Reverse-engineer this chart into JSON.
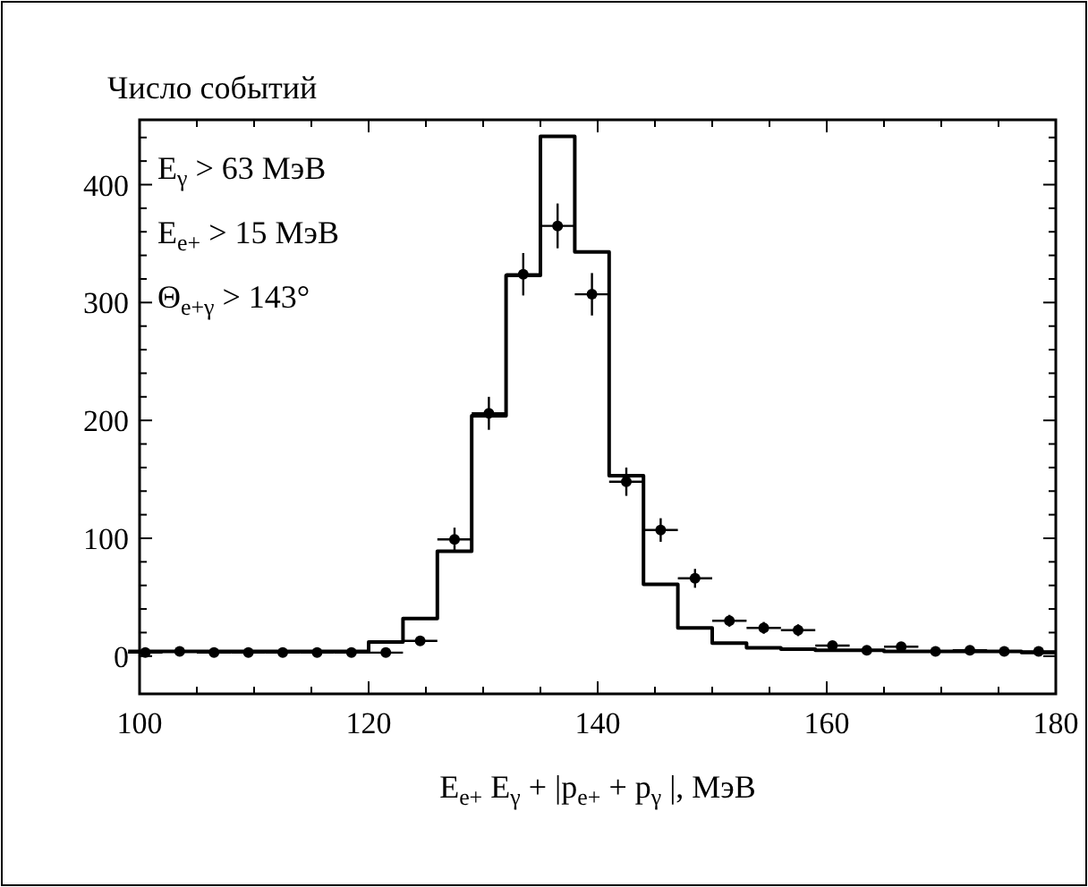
{
  "chart_data": {
    "type": "histogram",
    "ylabel": "Число событий",
    "xlabel": "E$_{e+}$E$_{γ}$ + |p$_{e+}$ + p$_{γ}$ |, МэВ",
    "annotations": [
      "E$_{γ}$ > 63 МэВ",
      "E$_{e+}$ > 15 МэВ",
      "Θ$_{e+γ}$ > 143°"
    ],
    "bins": [
      99,
      102,
      105,
      108,
      111,
      114,
      117,
      120,
      123,
      126,
      129,
      132,
      135,
      138,
      141,
      144,
      147,
      150,
      153,
      156,
      159,
      162,
      165,
      168,
      171,
      174,
      177,
      180
    ],
    "values": [
      4,
      4,
      4,
      4,
      4,
      4,
      4,
      12,
      32,
      89,
      204,
      323,
      441,
      343,
      153,
      61,
      24,
      11,
      7,
      6,
      5,
      5,
      4,
      4,
      4,
      4,
      3
    ],
    "color": "#000000",
    "series": [
      {
        "type": "scatter",
        "color": "#000000",
        "marker": "circle",
        "x": [
          100.5,
          103.5,
          106.5,
          109.5,
          112.5,
          115.5,
          118.5,
          121.5,
          124.5,
          127.5,
          130.5,
          133.5,
          136.5,
          139.5,
          142.5,
          145.5,
          148.5,
          151.5,
          154.5,
          157.5,
          160.5,
          163.5,
          166.5,
          169.5,
          172.5,
          175.5,
          178.5
        ],
        "values": [
          3,
          4,
          3,
          3,
          3,
          3,
          3,
          3,
          13,
          99,
          206,
          324,
          365,
          307,
          148,
          107,
          66,
          30,
          24,
          22,
          9,
          5,
          8,
          4,
          5,
          4,
          4
        ],
        "errors": [
          null,
          null,
          null,
          null,
          null,
          null,
          null,
          null,
          4,
          10,
          14,
          18,
          19,
          18,
          12,
          10,
          8,
          5,
          5,
          5,
          3,
          null,
          3,
          null,
          null,
          null,
          null
        ],
        "xerrors": [
          1.5,
          1.5,
          1.5,
          1.5,
          1.5,
          1.5,
          1.5,
          1.5,
          1.5,
          1.5,
          1.5,
          1.5,
          1.5,
          1.5,
          1.5,
          1.5,
          1.5,
          1.5,
          1.5,
          1.5,
          1.5,
          1.5,
          1.5,
          1.5,
          1.5,
          1.5,
          1.5
        ]
      }
    ],
    "xlim": [
      100,
      180
    ],
    "ylim": [
      -32,
      455
    ],
    "xticks": [
      100,
      {
        "value": 105,
        "label": null
      },
      {
        "value": 110,
        "label": null
      },
      {
        "value": 115,
        "label": null
      },
      120,
      {
        "value": 125,
        "label": null
      },
      {
        "value": 130,
        "label": null
      },
      {
        "value": 135,
        "label": null
      },
      140,
      {
        "value": 145,
        "label": null
      },
      {
        "value": 150,
        "label": null
      },
      {
        "value": 155,
        "label": null
      },
      160,
      {
        "value": 165,
        "label": null
      },
      {
        "value": 170,
        "label": null
      },
      {
        "value": 175,
        "label": null
      },
      180
    ],
    "yticks": [
      0,
      {
        "value": 20,
        "label": null
      },
      {
        "value": 40,
        "label": null
      },
      {
        "value": 60,
        "label": null
      },
      {
        "value": 80,
        "label": null
      },
      100,
      {
        "value": 120,
        "label": null
      },
      {
        "value": 140,
        "label": null
      },
      {
        "value": 160,
        "label": null
      },
      {
        "value": 180,
        "label": null
      },
      200,
      {
        "value": 220,
        "label": null
      },
      {
        "value": 240,
        "label": null
      },
      {
        "value": 260,
        "label": null
      },
      {
        "value": 280,
        "label": null
      },
      300,
      {
        "value": 320,
        "label": null
      },
      {
        "value": 340,
        "label": null
      },
      {
        "value": 360,
        "label": null
      },
      {
        "value": 380,
        "label": null
      },
      400,
      {
        "value": 420,
        "label": null
      },
      {
        "value": 440,
        "label": null
      }
    ],
    "grid": false
  }
}
